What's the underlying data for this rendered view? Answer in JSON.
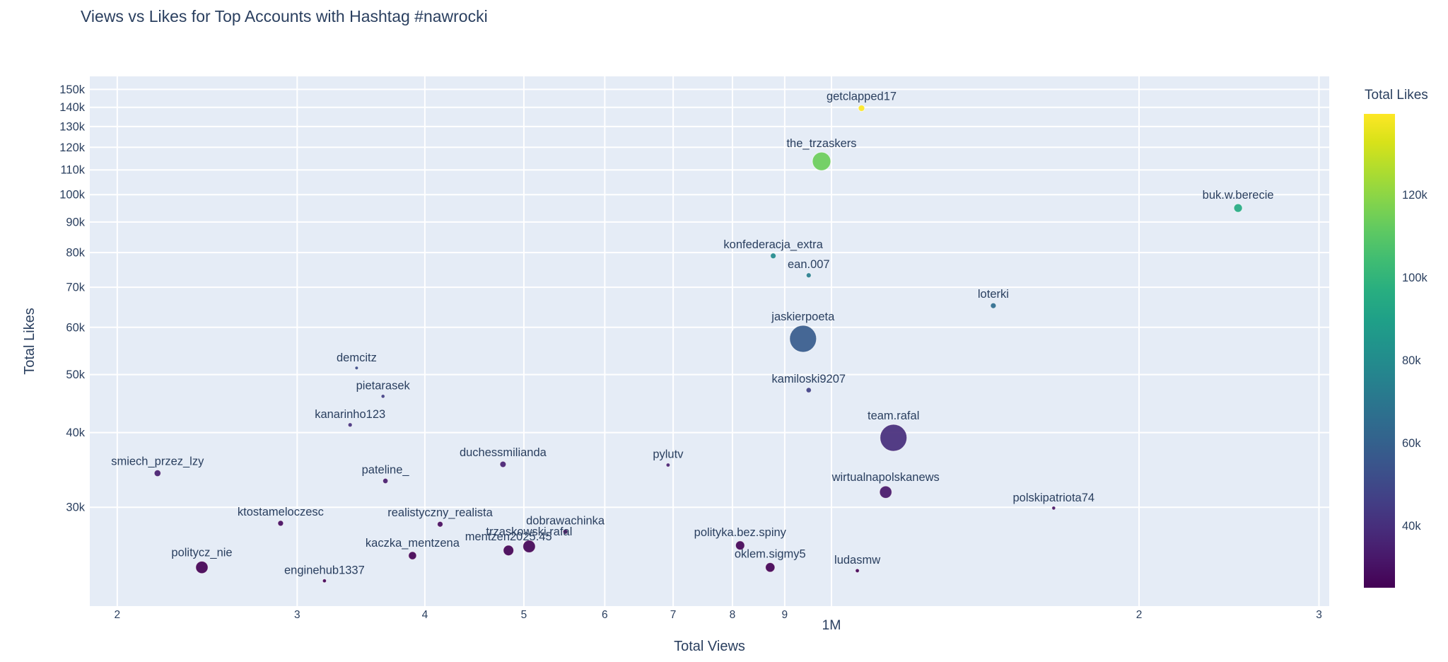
{
  "chart_data": {
    "type": "scatter",
    "title": "Views vs Likes for Top Accounts with Hashtag #nawrocki",
    "xlabel": "Total Views",
    "ylabel": "Total Likes",
    "x_scale": "log",
    "y_scale": "log",
    "x_range": [
      188000,
      3070000
    ],
    "y_range": [
      20500,
      157700
    ],
    "grid": true,
    "legend_position": "none",
    "plot_background": "#e5ecf6",
    "grid_color": "#ffffff",
    "font_color": "#2a3f5f",
    "x_ticks": [
      {
        "v": 200000,
        "label": "2"
      },
      {
        "v": 300000,
        "label": "3"
      },
      {
        "v": 400000,
        "label": "4"
      },
      {
        "v": 500000,
        "label": "5"
      },
      {
        "v": 600000,
        "label": "6"
      },
      {
        "v": 700000,
        "label": "7"
      },
      {
        "v": 800000,
        "label": "8"
      },
      {
        "v": 900000,
        "label": "9"
      },
      {
        "v": 1000000,
        "label": "1M",
        "major": true
      },
      {
        "v": 2000000,
        "label": "2"
      },
      {
        "v": 3000000,
        "label": "3"
      }
    ],
    "y_ticks": [
      {
        "v": 150000,
        "label": "150k"
      },
      {
        "v": 140000,
        "label": "140k"
      },
      {
        "v": 130000,
        "label": "130k"
      },
      {
        "v": 120000,
        "label": "120k"
      },
      {
        "v": 110000,
        "label": "110k"
      },
      {
        "v": 100000,
        "label": "100k"
      },
      {
        "v": 90000,
        "label": "90k"
      },
      {
        "v": 80000,
        "label": "80k"
      },
      {
        "v": 70000,
        "label": "70k"
      },
      {
        "v": 60000,
        "label": "60k"
      },
      {
        "v": 50000,
        "label": "50k"
      },
      {
        "v": 40000,
        "label": "40k"
      },
      {
        "v": 30000,
        "label": "30k"
      }
    ],
    "colorbar": {
      "title": "Total Likes",
      "min": 25000,
      "max": 139500,
      "ticks": [
        {
          "v": 120000,
          "label": "120k"
        },
        {
          "v": 100000,
          "label": "100k"
        },
        {
          "v": 80000,
          "label": "80k"
        },
        {
          "v": 60000,
          "label": "60k"
        },
        {
          "v": 40000,
          "label": "40k"
        }
      ]
    },
    "colorscale_viridis": [
      [
        0.0,
        "#440154"
      ],
      [
        0.0627,
        "#48186a"
      ],
      [
        0.1255,
        "#472d7b"
      ],
      [
        0.1882,
        "#424086"
      ],
      [
        0.251,
        "#3b528b"
      ],
      [
        0.3137,
        "#33638d"
      ],
      [
        0.3765,
        "#2c728e"
      ],
      [
        0.4392,
        "#26828e"
      ],
      [
        0.502,
        "#21918c"
      ],
      [
        0.5647,
        "#1fa088"
      ],
      [
        0.6275,
        "#28ae80"
      ],
      [
        0.6902,
        "#3fbc73"
      ],
      [
        0.7529,
        "#5ec962"
      ],
      [
        0.8157,
        "#84d44b"
      ],
      [
        0.8784,
        "#addc30"
      ],
      [
        0.9412,
        "#d8e219"
      ],
      [
        1.0,
        "#fde725"
      ]
    ],
    "points": [
      {
        "name": "getclapped17",
        "views": 1070000,
        "likes": 139500,
        "r": 4.5
      },
      {
        "name": "the_trzaskers",
        "views": 978000,
        "likes": 113700,
        "r": 13
      },
      {
        "name": "buk.w.berecie",
        "views": 2500000,
        "likes": 95000,
        "r": 6
      },
      {
        "name": "konfederacja_extra",
        "views": 877000,
        "likes": 79000,
        "r": 4
      },
      {
        "name": "ean.007",
        "views": 950000,
        "likes": 73300,
        "r": 3.5
      },
      {
        "name": "loterki",
        "views": 1440000,
        "likes": 65200,
        "r": 4
      },
      {
        "name": "jaskierpoeta",
        "views": 938000,
        "likes": 57400,
        "r": 19
      },
      {
        "name": "demcitz",
        "views": 343000,
        "likes": 51300,
        "r": 2.4
      },
      {
        "name": "kamiloski9207",
        "views": 950000,
        "likes": 47100,
        "r": 3.7
      },
      {
        "name": "pietarasek",
        "views": 364000,
        "likes": 46000,
        "r": 2.7
      },
      {
        "name": "kanarinho123",
        "views": 338000,
        "likes": 41200,
        "r": 3
      },
      {
        "name": "team.rafal",
        "views": 1150000,
        "likes": 39200,
        "r": 19
      },
      {
        "name": "duchessmilianda",
        "views": 477000,
        "likes": 35400,
        "r": 4.4
      },
      {
        "name": "pylutv",
        "views": 692000,
        "likes": 35300,
        "r": 2.8
      },
      {
        "name": "smiech_przez_lzy",
        "views": 219000,
        "likes": 34200,
        "r": 4.7
      },
      {
        "name": "pateline_",
        "views": 366000,
        "likes": 33200,
        "r": 3.7
      },
      {
        "name": "wirtualnapolskanews",
        "views": 1130000,
        "likes": 31800,
        "r": 8.7
      },
      {
        "name": "polskipatriota74",
        "views": 1650000,
        "likes": 29900,
        "r": 2.6
      },
      {
        "name": "ktostameloczesc",
        "views": 289000,
        "likes": 28200,
        "r": 4
      },
      {
        "name": "realistyczny_realista",
        "views": 414000,
        "likes": 28100,
        "r": 4
      },
      {
        "name": "dobrawachinka",
        "views": 549000,
        "likes": 27300,
        "r": 3.4
      },
      {
        "name": "polityka.bez.spiny",
        "views": 814000,
        "likes": 25900,
        "r": 6.4
      },
      {
        "name": "trzaskowski.rafal",
        "views": 506000,
        "likes": 25800,
        "r": 8.8
      },
      {
        "name": "mentzen2025.45",
        "views": 483000,
        "likes": 25400,
        "r": 7.4
      },
      {
        "name": "kaczka_mentzena",
        "views": 389000,
        "likes": 24900,
        "r": 5.7
      },
      {
        "name": "oklem.sigmy5",
        "views": 871000,
        "likes": 23800,
        "r": 6.7
      },
      {
        "name": "politycz_nie",
        "views": 242000,
        "likes": 23800,
        "r": 8.7
      },
      {
        "name": "ludasmw",
        "views": 1060000,
        "likes": 23500,
        "r": 2.8
      },
      {
        "name": "enginehub1337",
        "views": 319000,
        "likes": 22600,
        "r": 2.7
      }
    ]
  }
}
